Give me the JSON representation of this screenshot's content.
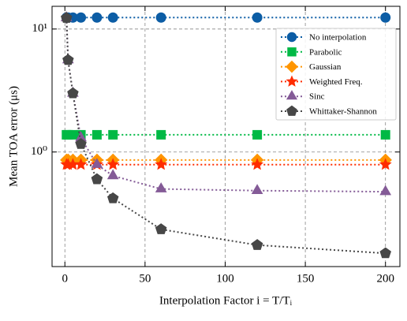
{
  "chart_data": {
    "type": "line",
    "xlabel": "Interpolation Factor i = T/Tᵢ",
    "ylabel": "Mean TOA error (μs)",
    "x": [
      1,
      2,
      5,
      10,
      20,
      30,
      60,
      120,
      200
    ],
    "xlim": [
      -8,
      209
    ],
    "xticks": [
      0,
      50,
      100,
      150,
      200
    ],
    "ylim": [
      0.117,
      15.3
    ],
    "yscale": "log",
    "yticks": [
      {
        "value": 1,
        "label": "10⁰"
      },
      {
        "value": 10,
        "label": "10¹"
      }
    ],
    "grid": true,
    "legend": "upper right",
    "series": [
      {
        "name": "No interpolation",
        "color": "#0C5DA5",
        "marker": "circle",
        "values": [
          12.4,
          12.4,
          12.4,
          12.4,
          12.4,
          12.4,
          12.4,
          12.4,
          12.4
        ]
      },
      {
        "name": "Parabolic",
        "color": "#00B945",
        "marker": "square",
        "values": [
          1.38,
          1.38,
          1.38,
          1.38,
          1.38,
          1.38,
          1.38,
          1.38,
          1.38
        ]
      },
      {
        "name": "Gaussian",
        "color": "#FF9500",
        "marker": "diamond",
        "values": [
          0.86,
          0.86,
          0.86,
          0.86,
          0.86,
          0.86,
          0.86,
          0.86,
          0.86
        ]
      },
      {
        "name": "Weighted Freq.",
        "color": "#FF2C00",
        "marker": "star",
        "values": [
          0.79,
          0.79,
          0.79,
          0.79,
          0.79,
          0.79,
          0.79,
          0.79,
          0.79
        ]
      },
      {
        "name": "Sinc",
        "color": "#845B97",
        "marker": "triangle",
        "values": [
          12.3,
          5.6,
          3.0,
          1.3,
          0.79,
          0.64,
          0.5,
          0.485,
          0.475
        ]
      },
      {
        "name": "Whittaker-Shannon",
        "color": "#474747",
        "marker": "pentagon",
        "values": [
          12.3,
          5.6,
          3.0,
          1.16,
          0.6,
          0.42,
          0.235,
          0.175,
          0.15
        ]
      }
    ]
  }
}
